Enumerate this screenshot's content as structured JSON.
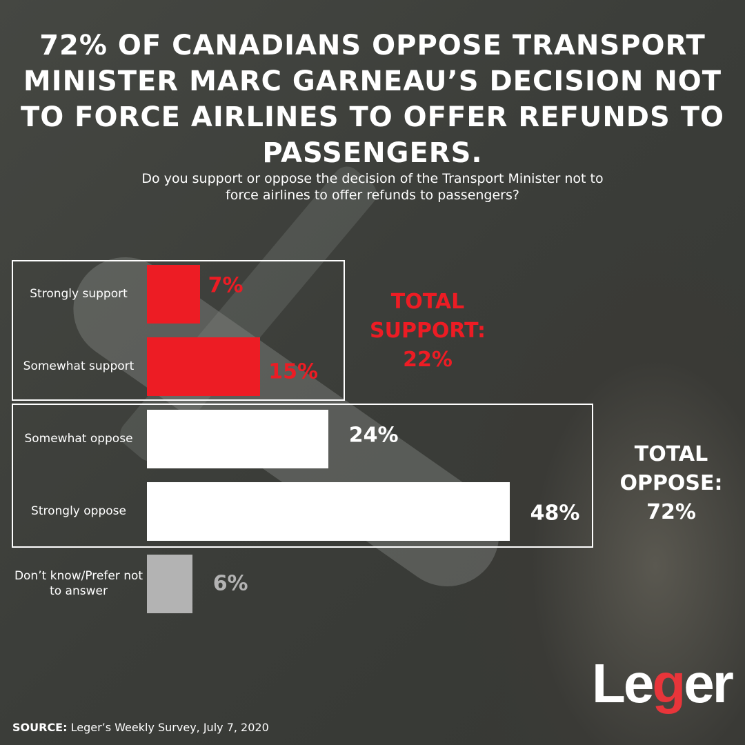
{
  "title": "72% OF CANADIANS OPPOSE TRANSPORT MINISTER MARC GARNEAU’S DECISION NOT TO FORCE AIRLINES TO OFFER REFUNDS TO PASSENGERS.",
  "question": "Do you support or oppose the decision of the Transport Minister not to force airlines to offer refunds to passengers?",
  "chart_data": {
    "type": "bar",
    "orientation": "horizontal",
    "categories": [
      "Strongly support",
      "Somewhat support",
      "Somewhat oppose",
      "Strongly oppose",
      "Don’t know/Prefer not to answer"
    ],
    "values": [
      7,
      15,
      24,
      48,
      6
    ],
    "value_labels": [
      "7%",
      "15%",
      "24%",
      "48%",
      "6%"
    ],
    "colors": [
      "#ed1c24",
      "#ed1c24",
      "#ffffff",
      "#ffffff",
      "#b3b3b3"
    ],
    "label_colors": [
      "#ed1c24",
      "#ed1c24",
      "#ffffff",
      "#ffffff",
      "#b3b3b3"
    ],
    "unit": "%"
  },
  "totals": {
    "support": {
      "label": "TOTAL SUPPORT:",
      "value": "22%",
      "color": "#ed1c24"
    },
    "oppose": {
      "label": "TOTAL OPPOSE:",
      "value": "72%",
      "color": "#ffffff"
    }
  },
  "logo": {
    "text": "Leger",
    "accent": "#e8353a"
  },
  "source": {
    "label": "SOURCE:",
    "text": " Leger’s Weekly Survey, July 7, 2020"
  }
}
